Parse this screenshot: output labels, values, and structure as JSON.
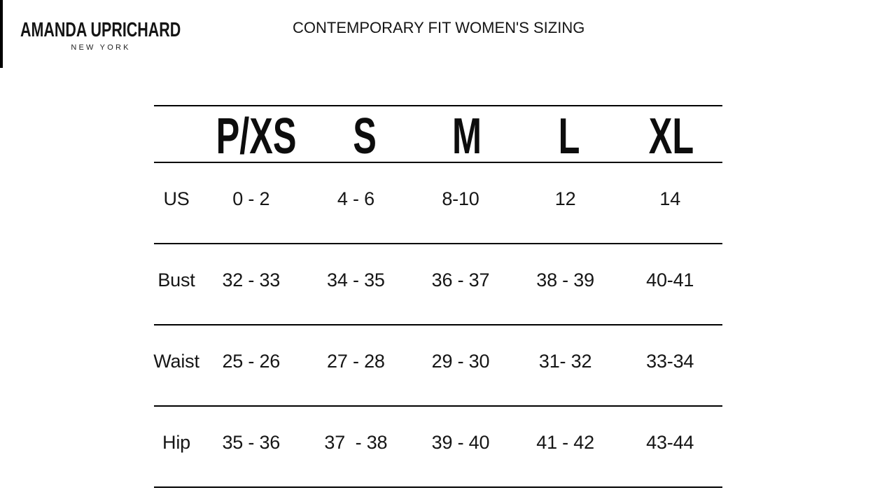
{
  "brand": {
    "name": "AMANDA UPRICHARD",
    "subtitle": "NEW YORK"
  },
  "page_title": "CONTEMPORARY FIT WOMEN'S SIZING",
  "table": {
    "columns": [
      "P/XS",
      "S",
      "M",
      "L",
      "XL"
    ],
    "rows": [
      {
        "label": "US",
        "values": [
          "0 - 2",
          "4 - 6",
          "8-10",
          "12",
          "14"
        ]
      },
      {
        "label": "Bust",
        "values": [
          "32 - 33",
          "34 - 35",
          "36 - 37",
          "38 - 39",
          "40-41"
        ]
      },
      {
        "label": "Waist",
        "values": [
          "25 - 26",
          "27 - 28",
          "29 - 30",
          "31- 32",
          "33-34"
        ]
      },
      {
        "label": "Hip",
        "values": [
          "35 - 36",
          "37  - 38",
          "39 - 40",
          "41 - 42",
          "43-44"
        ]
      }
    ]
  },
  "colors": {
    "text": "#111111",
    "line": "#000000",
    "background": "#ffffff"
  }
}
